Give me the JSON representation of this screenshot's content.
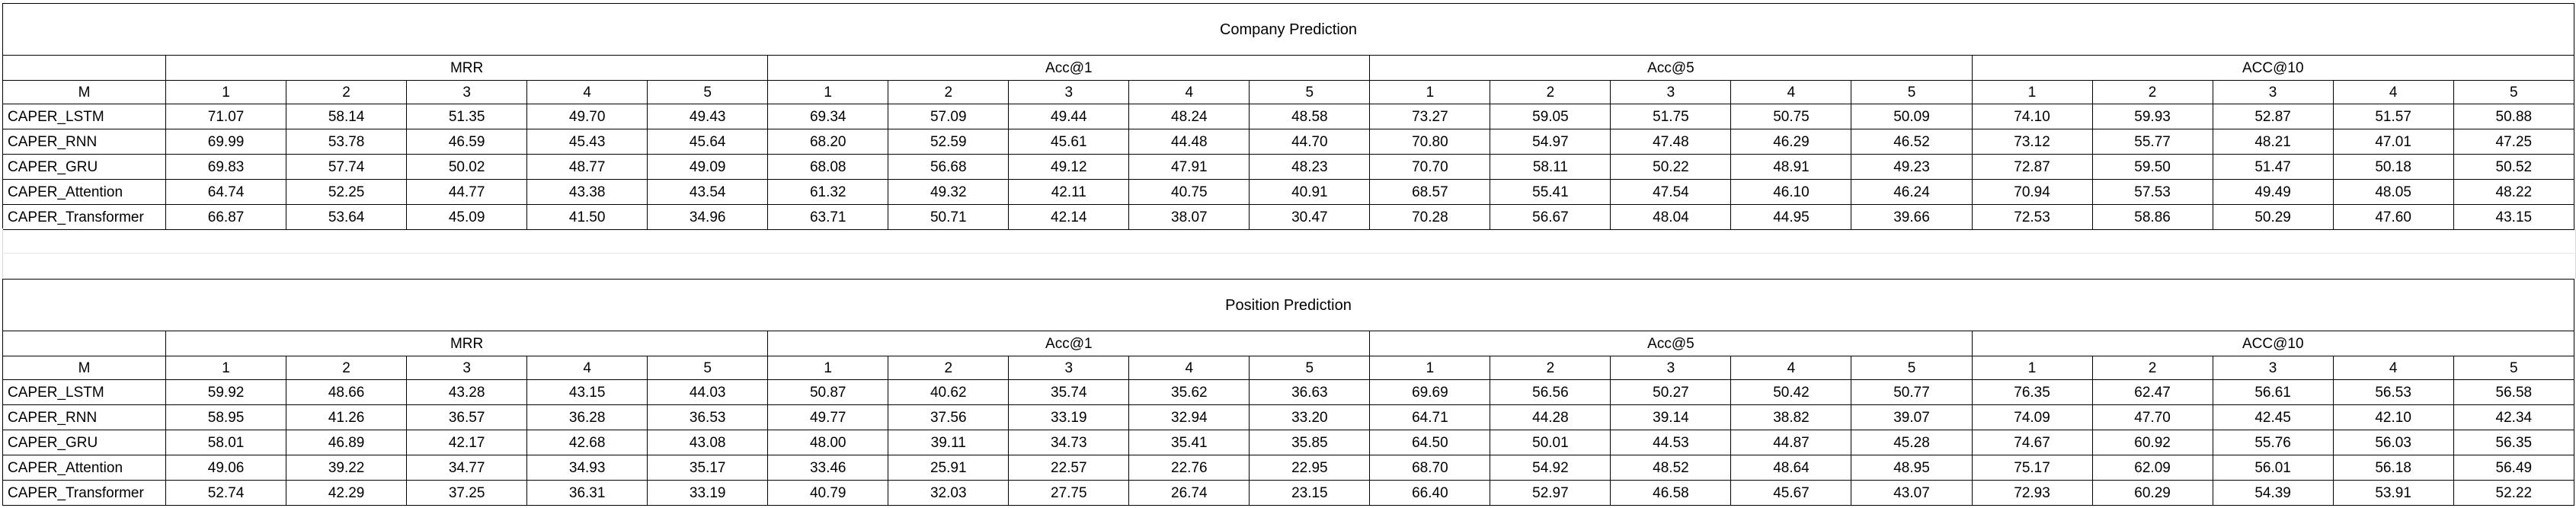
{
  "tables": [
    {
      "title": "Company Prediction",
      "corner_label": "M",
      "groups": [
        "MRR",
        "Acc@1",
        "Acc@5",
        "ACC@10"
      ],
      "sub_columns": [
        "1",
        "2",
        "3",
        "4",
        "5"
      ],
      "rows": [
        {
          "label": "CAPER_LSTM",
          "values": [
            "71.07",
            "58.14",
            "51.35",
            "49.70",
            "49.43",
            "69.34",
            "57.09",
            "49.44",
            "48.24",
            "48.58",
            "73.27",
            "59.05",
            "51.75",
            "50.75",
            "50.09",
            "74.10",
            "59.93",
            "52.87",
            "51.57",
            "50.88"
          ]
        },
        {
          "label": "CAPER_RNN",
          "values": [
            "69.99",
            "53.78",
            "46.59",
            "45.43",
            "45.64",
            "68.20",
            "52.59",
            "45.61",
            "44.48",
            "44.70",
            "70.80",
            "54.97",
            "47.48",
            "46.29",
            "46.52",
            "73.12",
            "55.77",
            "48.21",
            "47.01",
            "47.25"
          ]
        },
        {
          "label": "CAPER_GRU",
          "values": [
            "69.83",
            "57.74",
            "50.02",
            "48.77",
            "49.09",
            "68.08",
            "56.68",
            "49.12",
            "47.91",
            "48.23",
            "70.70",
            "58.11",
            "50.22",
            "48.91",
            "49.23",
            "72.87",
            "59.50",
            "51.47",
            "50.18",
            "50.52"
          ]
        },
        {
          "label": "CAPER_Attention",
          "values": [
            "64.74",
            "52.25",
            "44.77",
            "43.38",
            "43.54",
            "61.32",
            "49.32",
            "42.11",
            "40.75",
            "40.91",
            "68.57",
            "55.41",
            "47.54",
            "46.10",
            "46.24",
            "70.94",
            "57.53",
            "49.49",
            "48.05",
            "48.22"
          ]
        },
        {
          "label": "CAPER_Transformer",
          "values": [
            "66.87",
            "53.64",
            "45.09",
            "41.50",
            "34.96",
            "63.71",
            "50.71",
            "42.14",
            "38.07",
            "30.47",
            "70.28",
            "56.67",
            "48.04",
            "44.95",
            "39.66",
            "72.53",
            "58.86",
            "50.29",
            "47.60",
            "43.15"
          ]
        }
      ]
    },
    {
      "title": "Position Prediction",
      "corner_label": "M",
      "groups": [
        "MRR",
        "Acc@1",
        "Acc@5",
        "ACC@10"
      ],
      "sub_columns": [
        "1",
        "2",
        "3",
        "4",
        "5"
      ],
      "rows": [
        {
          "label": "CAPER_LSTM",
          "values": [
            "59.92",
            "48.66",
            "43.28",
            "43.15",
            "44.03",
            "50.87",
            "40.62",
            "35.74",
            "35.62",
            "36.63",
            "69.69",
            "56.56",
            "50.27",
            "50.42",
            "50.77",
            "76.35",
            "62.47",
            "56.61",
            "56.53",
            "56.58"
          ]
        },
        {
          "label": "CAPER_RNN",
          "values": [
            "58.95",
            "41.26",
            "36.57",
            "36.28",
            "36.53",
            "49.77",
            "37.56",
            "33.19",
            "32.94",
            "33.20",
            "64.71",
            "44.28",
            "39.14",
            "38.82",
            "39.07",
            "74.09",
            "47.70",
            "42.45",
            "42.10",
            "42.34"
          ]
        },
        {
          "label": "CAPER_GRU",
          "values": [
            "58.01",
            "46.89",
            "42.17",
            "42.68",
            "43.08",
            "48.00",
            "39.11",
            "34.73",
            "35.41",
            "35.85",
            "64.50",
            "50.01",
            "44.53",
            "44.87",
            "45.28",
            "74.67",
            "60.92",
            "55.76",
            "56.03",
            "56.35"
          ]
        },
        {
          "label": "CAPER_Attention",
          "values": [
            "49.06",
            "39.22",
            "34.77",
            "34.93",
            "35.17",
            "33.46",
            "25.91",
            "22.57",
            "22.76",
            "22.95",
            "68.70",
            "54.92",
            "48.52",
            "48.64",
            "48.95",
            "75.17",
            "62.09",
            "56.01",
            "56.18",
            "56.49"
          ]
        },
        {
          "label": "CAPER_Transformer",
          "values": [
            "52.74",
            "42.29",
            "37.25",
            "36.31",
            "33.19",
            "40.79",
            "32.03",
            "27.75",
            "26.74",
            "23.15",
            "66.40",
            "52.97",
            "46.58",
            "45.67",
            "43.07",
            "72.93",
            "60.29",
            "54.39",
            "53.91",
            "52.22"
          ]
        }
      ]
    }
  ]
}
